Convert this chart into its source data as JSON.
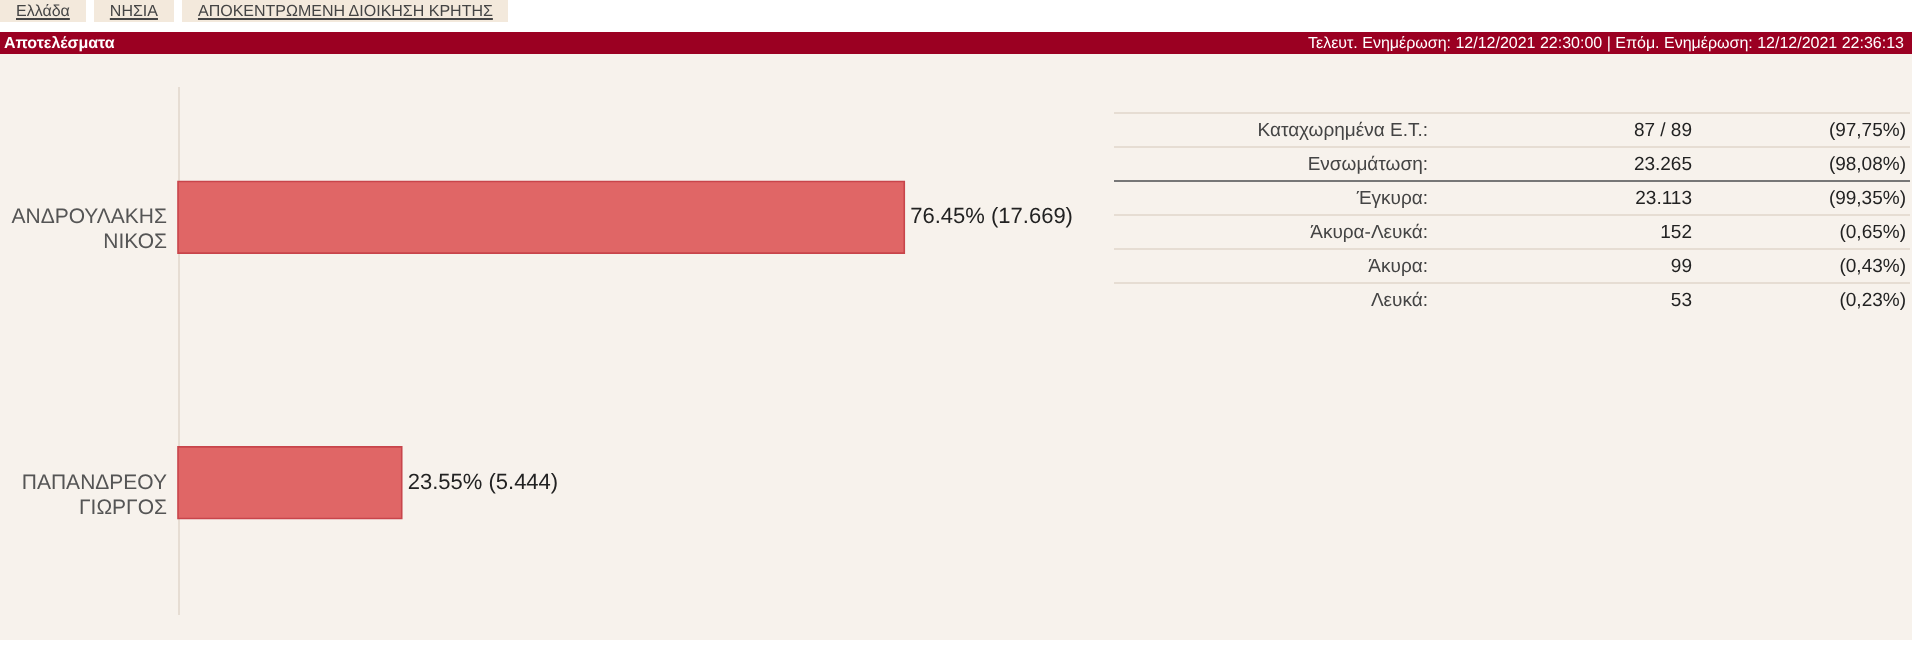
{
  "chart_data": {
    "type": "bar",
    "orientation": "horizontal",
    "title": "Αποτελέσματα",
    "categories": [
      "ΑΝΔΡΟΥΛΑΚΗΣ ΝΙΚΟΣ",
      "ΠΑΠΑΝΔΡΕΟΥ ΓΙΩΡΓΟΣ"
    ],
    "values": [
      76.45,
      23.55
    ],
    "value_labels": [
      "76.45% (17.669)",
      "23.55% (5.444)"
    ],
    "color": "#e06666",
    "annotations": [
      "Ελλάδα",
      "ΝΗΣΙΑ",
      "ΑΠΟΚΕΝΤΡΩΜΕΝΗ ΔΙΟΙΚΗΣΗ ΚΡΗΤΗΣ",
      "Τελευτ. Ενημέρωση: 12/12/2021 22:30:00  |  Επόμ. Ενημέρωση: 12/12/2021 22:36:13",
      "Καταχωρημένα Ε.Τ.:",
      "87 / 89",
      "(97,75%)",
      "Ενσωμάτωση:",
      "23.265",
      "(98,08%)",
      "Έγκυρα:",
      "23.113",
      "(99,35%)",
      "Άκυρα-Λευκά:",
      "152",
      "(0,65%)",
      "Άκυρα:",
      "99",
      "(0,43%)",
      "Λευκά:",
      "53",
      "(0,23%)"
    ]
  }
}
